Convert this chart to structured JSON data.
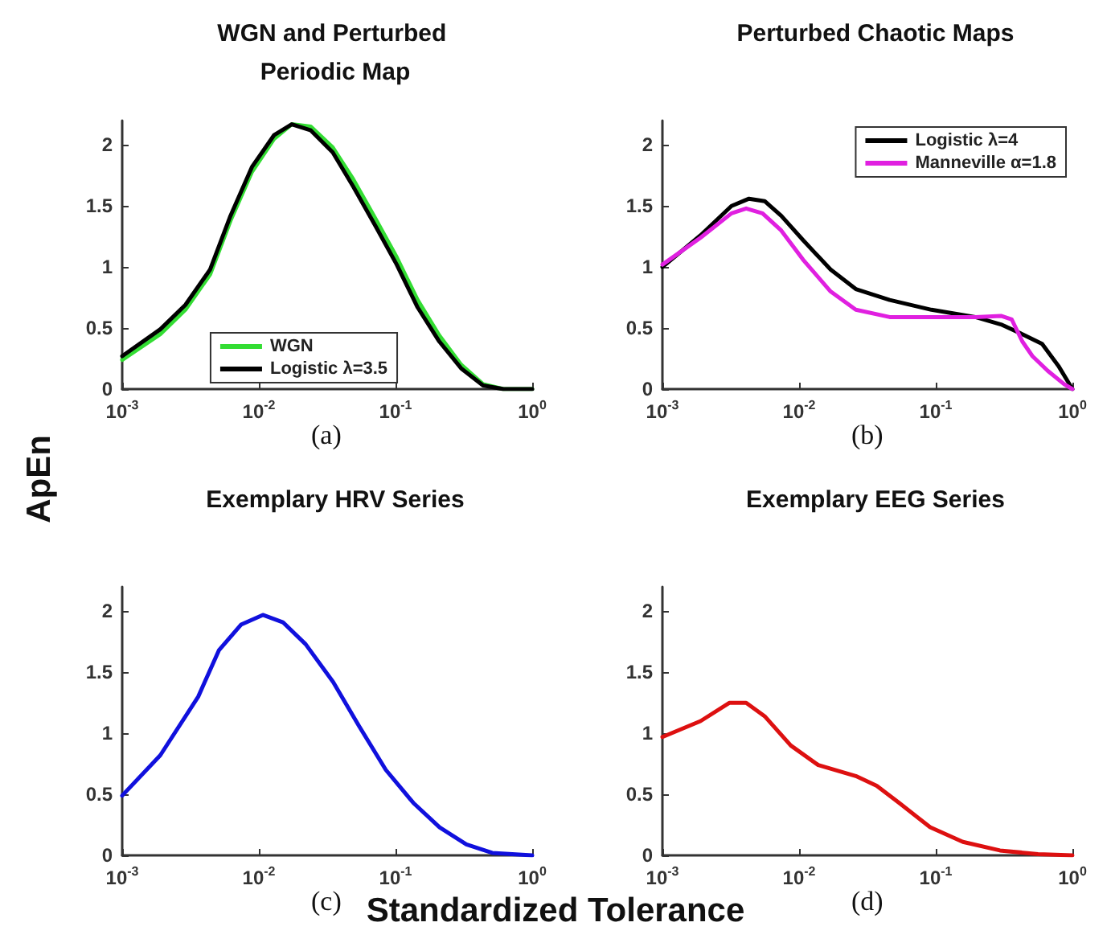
{
  "chart_data": [
    {
      "type": "line",
      "title": "WGN and Perturbed Periodic Map",
      "ylabel": "ApEn",
      "log": "x",
      "xlim": [
        0.001,
        1
      ],
      "ylim": [
        0,
        2.2
      ],
      "xticks": [
        {
          "value": 0.001,
          "label": "10$^{-3}$"
        },
        {
          "value": 0.01,
          "label": "10$^{-2}$"
        },
        {
          "value": 0.1,
          "label": "10$^{-1}$"
        },
        {
          "value": 1,
          "label": "10$^{0}$"
        }
      ],
      "yticks": [
        0,
        0.5,
        1,
        1.5,
        2
      ],
      "grid": false,
      "legend": "bottom",
      "annotations": [
        "(a)"
      ],
      "x": [
        0.001,
        0.0019,
        0.0029,
        0.0044,
        0.0062,
        0.0089,
        0.0129,
        0.0174,
        0.024,
        0.0347,
        0.049,
        0.071,
        0.102,
        0.145,
        0.209,
        0.302,
        0.437,
        0.617,
        1
      ],
      "series": [
        {
          "name": "WGN",
          "color": "#33dd33",
          "values": [
            0.24,
            0.45,
            0.65,
            0.94,
            1.38,
            1.78,
            2.05,
            2.17,
            2.15,
            1.98,
            1.72,
            1.4,
            1.08,
            0.73,
            0.44,
            0.2,
            0.04,
            0,
            0
          ]
        },
        {
          "name": "Logistic λ=3.5",
          "color": "#000000",
          "values": [
            0.27,
            0.49,
            0.69,
            0.98,
            1.42,
            1.82,
            2.08,
            2.17,
            2.12,
            1.94,
            1.66,
            1.34,
            1.02,
            0.67,
            0.39,
            0.17,
            0.03,
            0,
            0
          ]
        }
      ]
    },
    {
      "type": "line",
      "title": "Perturbed Chaotic Maps",
      "log": "x",
      "xlim": [
        0.001,
        1
      ],
      "ylim": [
        0,
        2.2
      ],
      "xticks": [
        {
          "value": 0.001,
          "label": "10$^{-3}$"
        },
        {
          "value": 0.01,
          "label": "10$^{-2}$"
        },
        {
          "value": 0.1,
          "label": "10$^{-1}$"
        },
        {
          "value": 1,
          "label": "10$^{0}$"
        }
      ],
      "yticks": [
        0,
        0.5,
        1,
        1.5,
        2
      ],
      "grid": false,
      "legend": "top right",
      "annotations": [
        "(b)"
      ],
      "series": [
        {
          "name": "Logistic λ=4",
          "color": "#000000",
          "x": [
            0.001,
            0.0019,
            0.0032,
            0.0043,
            0.0056,
            0.0074,
            0.0107,
            0.017,
            0.026,
            0.046,
            0.093,
            0.195,
            0.3,
            0.43,
            0.6,
            0.79,
            1
          ],
          "values": [
            1.0,
            1.26,
            1.5,
            1.56,
            1.54,
            1.42,
            1.22,
            0.98,
            0.82,
            0.73,
            0.65,
            0.59,
            0.53,
            0.45,
            0.37,
            0.19,
            0
          ]
        },
        {
          "name": "Manneville α=1.8",
          "color": "#e020e0",
          "x": [
            0.001,
            0.0019,
            0.0032,
            0.0041,
            0.0054,
            0.0074,
            0.0107,
            0.017,
            0.026,
            0.046,
            0.093,
            0.195,
            0.3,
            0.36,
            0.43,
            0.51,
            0.66,
            0.87,
            1
          ],
          "values": [
            1.02,
            1.24,
            1.44,
            1.48,
            1.44,
            1.3,
            1.06,
            0.8,
            0.65,
            0.59,
            0.59,
            0.59,
            0.6,
            0.57,
            0.39,
            0.27,
            0.15,
            0.04,
            0
          ]
        }
      ]
    },
    {
      "type": "line",
      "title": "Exemplary HRV Series",
      "xlabel": "Standardized Tolerance",
      "log": "x",
      "xlim": [
        0.001,
        1
      ],
      "ylim": [
        0,
        2.2
      ],
      "xticks": [
        {
          "value": 0.001,
          "label": "10$^{-3}$"
        },
        {
          "value": 0.01,
          "label": "10$^{-2}$"
        },
        {
          "value": 0.1,
          "label": "10$^{-1}$"
        },
        {
          "value": 1,
          "label": "10$^{0}$"
        }
      ],
      "yticks": [
        0,
        0.5,
        1,
        1.5,
        2
      ],
      "grid": false,
      "annotations": [
        "(c)"
      ],
      "x": [
        0.001,
        0.0019,
        0.0036,
        0.0051,
        0.0074,
        0.0107,
        0.015,
        0.022,
        0.035,
        0.054,
        0.085,
        0.135,
        0.21,
        0.33,
        0.51,
        1
      ],
      "series": [
        {
          "color": "#1010dd",
          "values": [
            0.49,
            0.82,
            1.3,
            1.68,
            1.89,
            1.97,
            1.91,
            1.73,
            1.42,
            1.06,
            0.7,
            0.43,
            0.23,
            0.09,
            0.02,
            0
          ]
        }
      ]
    },
    {
      "type": "line",
      "title": "Exemplary EEG Series",
      "log": "x",
      "xlim": [
        0.001,
        1
      ],
      "ylim": [
        0,
        2.2
      ],
      "xticks": [
        {
          "value": 0.001,
          "label": "10$^{-3}$"
        },
        {
          "value": 0.01,
          "label": "10$^{-2}$"
        },
        {
          "value": 0.1,
          "label": "10$^{-1}$"
        },
        {
          "value": 1,
          "label": "10$^{0}$"
        }
      ],
      "yticks": [
        0,
        0.5,
        1,
        1.5,
        2
      ],
      "grid": false,
      "annotations": [
        "(d)"
      ],
      "x": [
        0.001,
        0.0019,
        0.0031,
        0.0041,
        0.0056,
        0.0087,
        0.0138,
        0.026,
        0.037,
        0.054,
        0.091,
        0.158,
        0.295,
        0.56,
        1
      ],
      "series": [
        {
          "color": "#dd1010",
          "values": [
            0.97,
            1.1,
            1.25,
            1.25,
            1.14,
            0.9,
            0.74,
            0.65,
            0.57,
            0.43,
            0.23,
            0.11,
            0.04,
            0.01,
            0
          ]
        }
      ]
    }
  ]
}
